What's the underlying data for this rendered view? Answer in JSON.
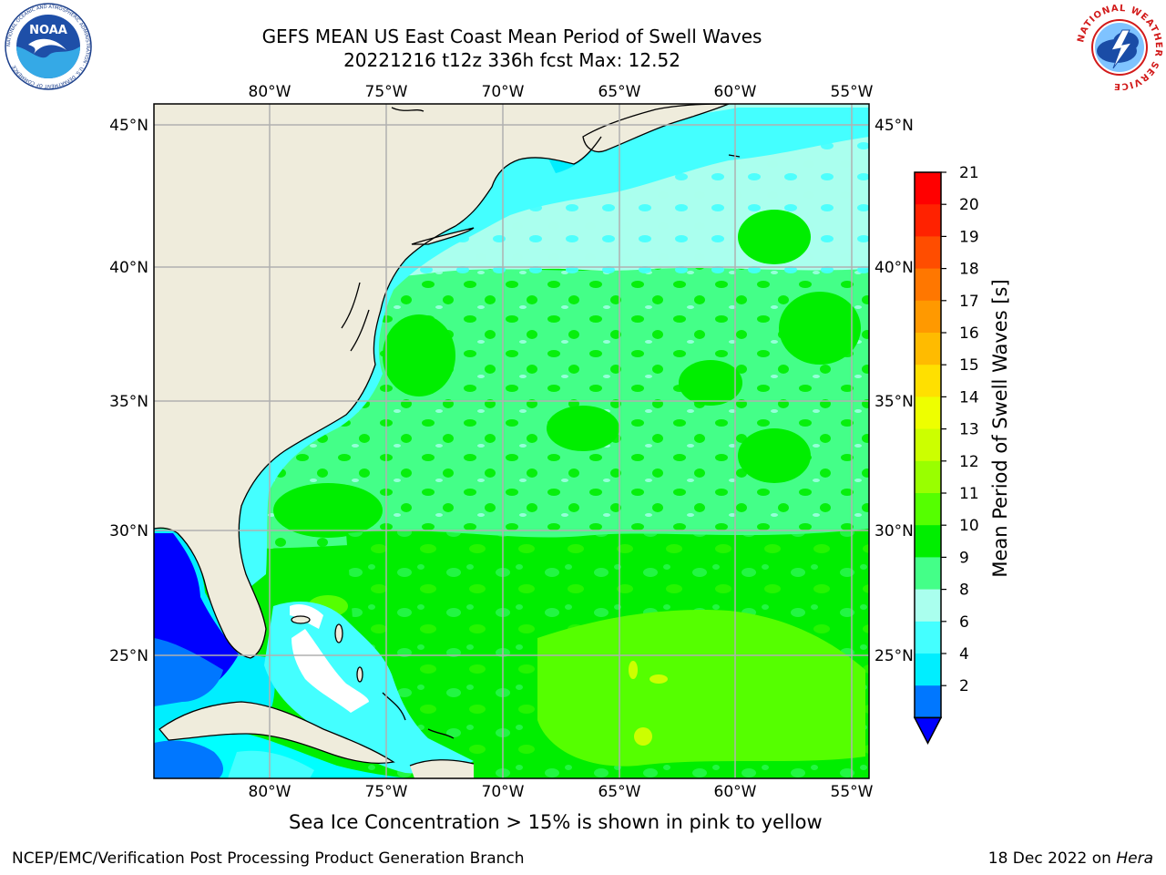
{
  "title": {
    "line1": "GEFS MEAN US East Coast Mean Period of Swell Waves",
    "line2": "20221216 t12z 336h fcst   Max: 12.52"
  },
  "map": {
    "lon_labels": [
      "80°W",
      "75°W",
      "70°W",
      "65°W",
      "60°W",
      "55°W"
    ],
    "lat_labels": [
      "45°N",
      "40°N",
      "35°N",
      "30°N",
      "25°N"
    ],
    "colors": {
      "land": "#efecdc",
      "grid": "#b0b0b0",
      "dominant_ocean": "#00ff00",
      "shelf_water": "#44ffff"
    }
  },
  "colorbar": {
    "label": "Mean Period of Swell Waves [s]",
    "tick_labels": [
      "21",
      "20",
      "19",
      "18",
      "17",
      "16",
      "15",
      "14",
      "13",
      "12",
      "11",
      "10",
      "9",
      "8",
      "6",
      "4",
      "2"
    ],
    "bands": [
      {
        "color": "#ff0000"
      },
      {
        "color": "#ff2200"
      },
      {
        "color": "#ff4d00"
      },
      {
        "color": "#ff7700"
      },
      {
        "color": "#ff9900"
      },
      {
        "color": "#ffbb00"
      },
      {
        "color": "#ffe000"
      },
      {
        "color": "#eeff00"
      },
      {
        "color": "#ccff00"
      },
      {
        "color": "#99ff00"
      },
      {
        "color": "#55ff00"
      },
      {
        "color": "#00ee00"
      },
      {
        "color": "#44ff88"
      },
      {
        "color": "#aaffee"
      },
      {
        "color": "#44ffff"
      },
      {
        "color": "#00eeff"
      },
      {
        "color": "#0077ff"
      }
    ],
    "extend_color": "#0000ff"
  },
  "logos": {
    "noaa_text": "NOAA",
    "noaa_ring_text": "NATIONAL OCEANIC AND ATMOSPHERIC ADMINISTRATION · U.S. DEPARTMENT OF COMMERCE",
    "nws_ring_text": "NATIONAL WEATHER SERVICE"
  },
  "footer": {
    "note": "Sea Ice Concentration > 15% is shown in pink to yellow",
    "left": "NCEP/EMC/Verification Post Processing Product Generation Branch",
    "right_date": "18 Dec 2022 on ",
    "right_machine": "Hera"
  }
}
